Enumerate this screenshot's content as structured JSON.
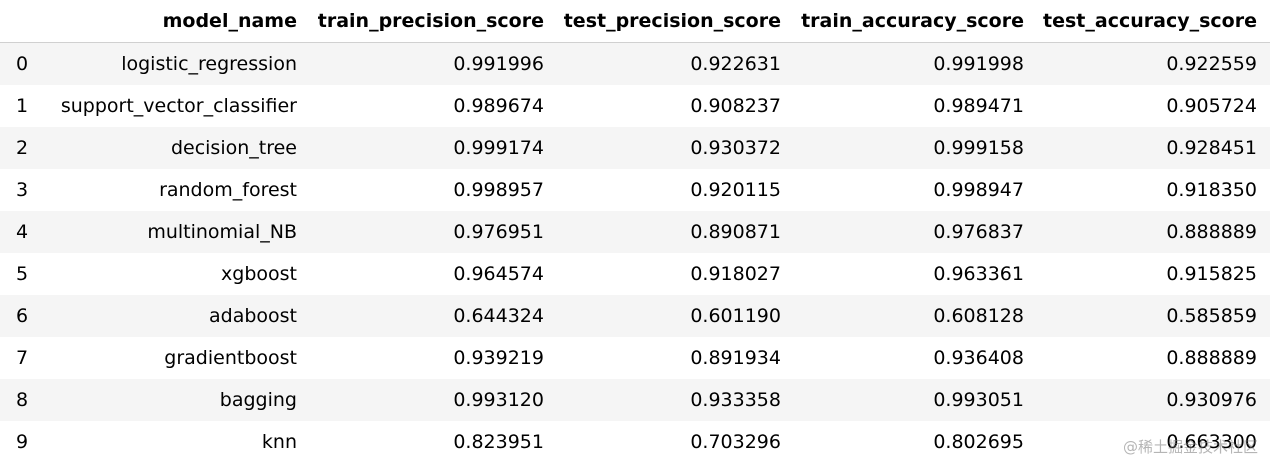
{
  "table": {
    "columns": [
      "model_name",
      "train_precision_score",
      "test_precision_score",
      "train_accuracy_score",
      "test_accuracy_score"
    ],
    "rows": [
      [
        "0",
        "logistic_regression",
        "0.991996",
        "0.922631",
        "0.991998",
        "0.922559"
      ],
      [
        "1",
        "support_vector_classifier",
        "0.989674",
        "0.908237",
        "0.989471",
        "0.905724"
      ],
      [
        "2",
        "decision_tree",
        "0.999174",
        "0.930372",
        "0.999158",
        "0.928451"
      ],
      [
        "3",
        "random_forest",
        "0.998957",
        "0.920115",
        "0.998947",
        "0.918350"
      ],
      [
        "4",
        "multinomial_NB",
        "0.976951",
        "0.890871",
        "0.976837",
        "0.888889"
      ],
      [
        "5",
        "xgboost",
        "0.964574",
        "0.918027",
        "0.963361",
        "0.915825"
      ],
      [
        "6",
        "adaboost",
        "0.644324",
        "0.601190",
        "0.608128",
        "0.585859"
      ],
      [
        "7",
        "gradientboost",
        "0.939219",
        "0.891934",
        "0.936408",
        "0.888889"
      ],
      [
        "8",
        "bagging",
        "0.993120",
        "0.933358",
        "0.993051",
        "0.930976"
      ],
      [
        "9",
        "knn",
        "0.823951",
        "0.703296",
        "0.802695",
        "0.663300"
      ]
    ]
  },
  "watermark": "@稀土掘金技术社区"
}
